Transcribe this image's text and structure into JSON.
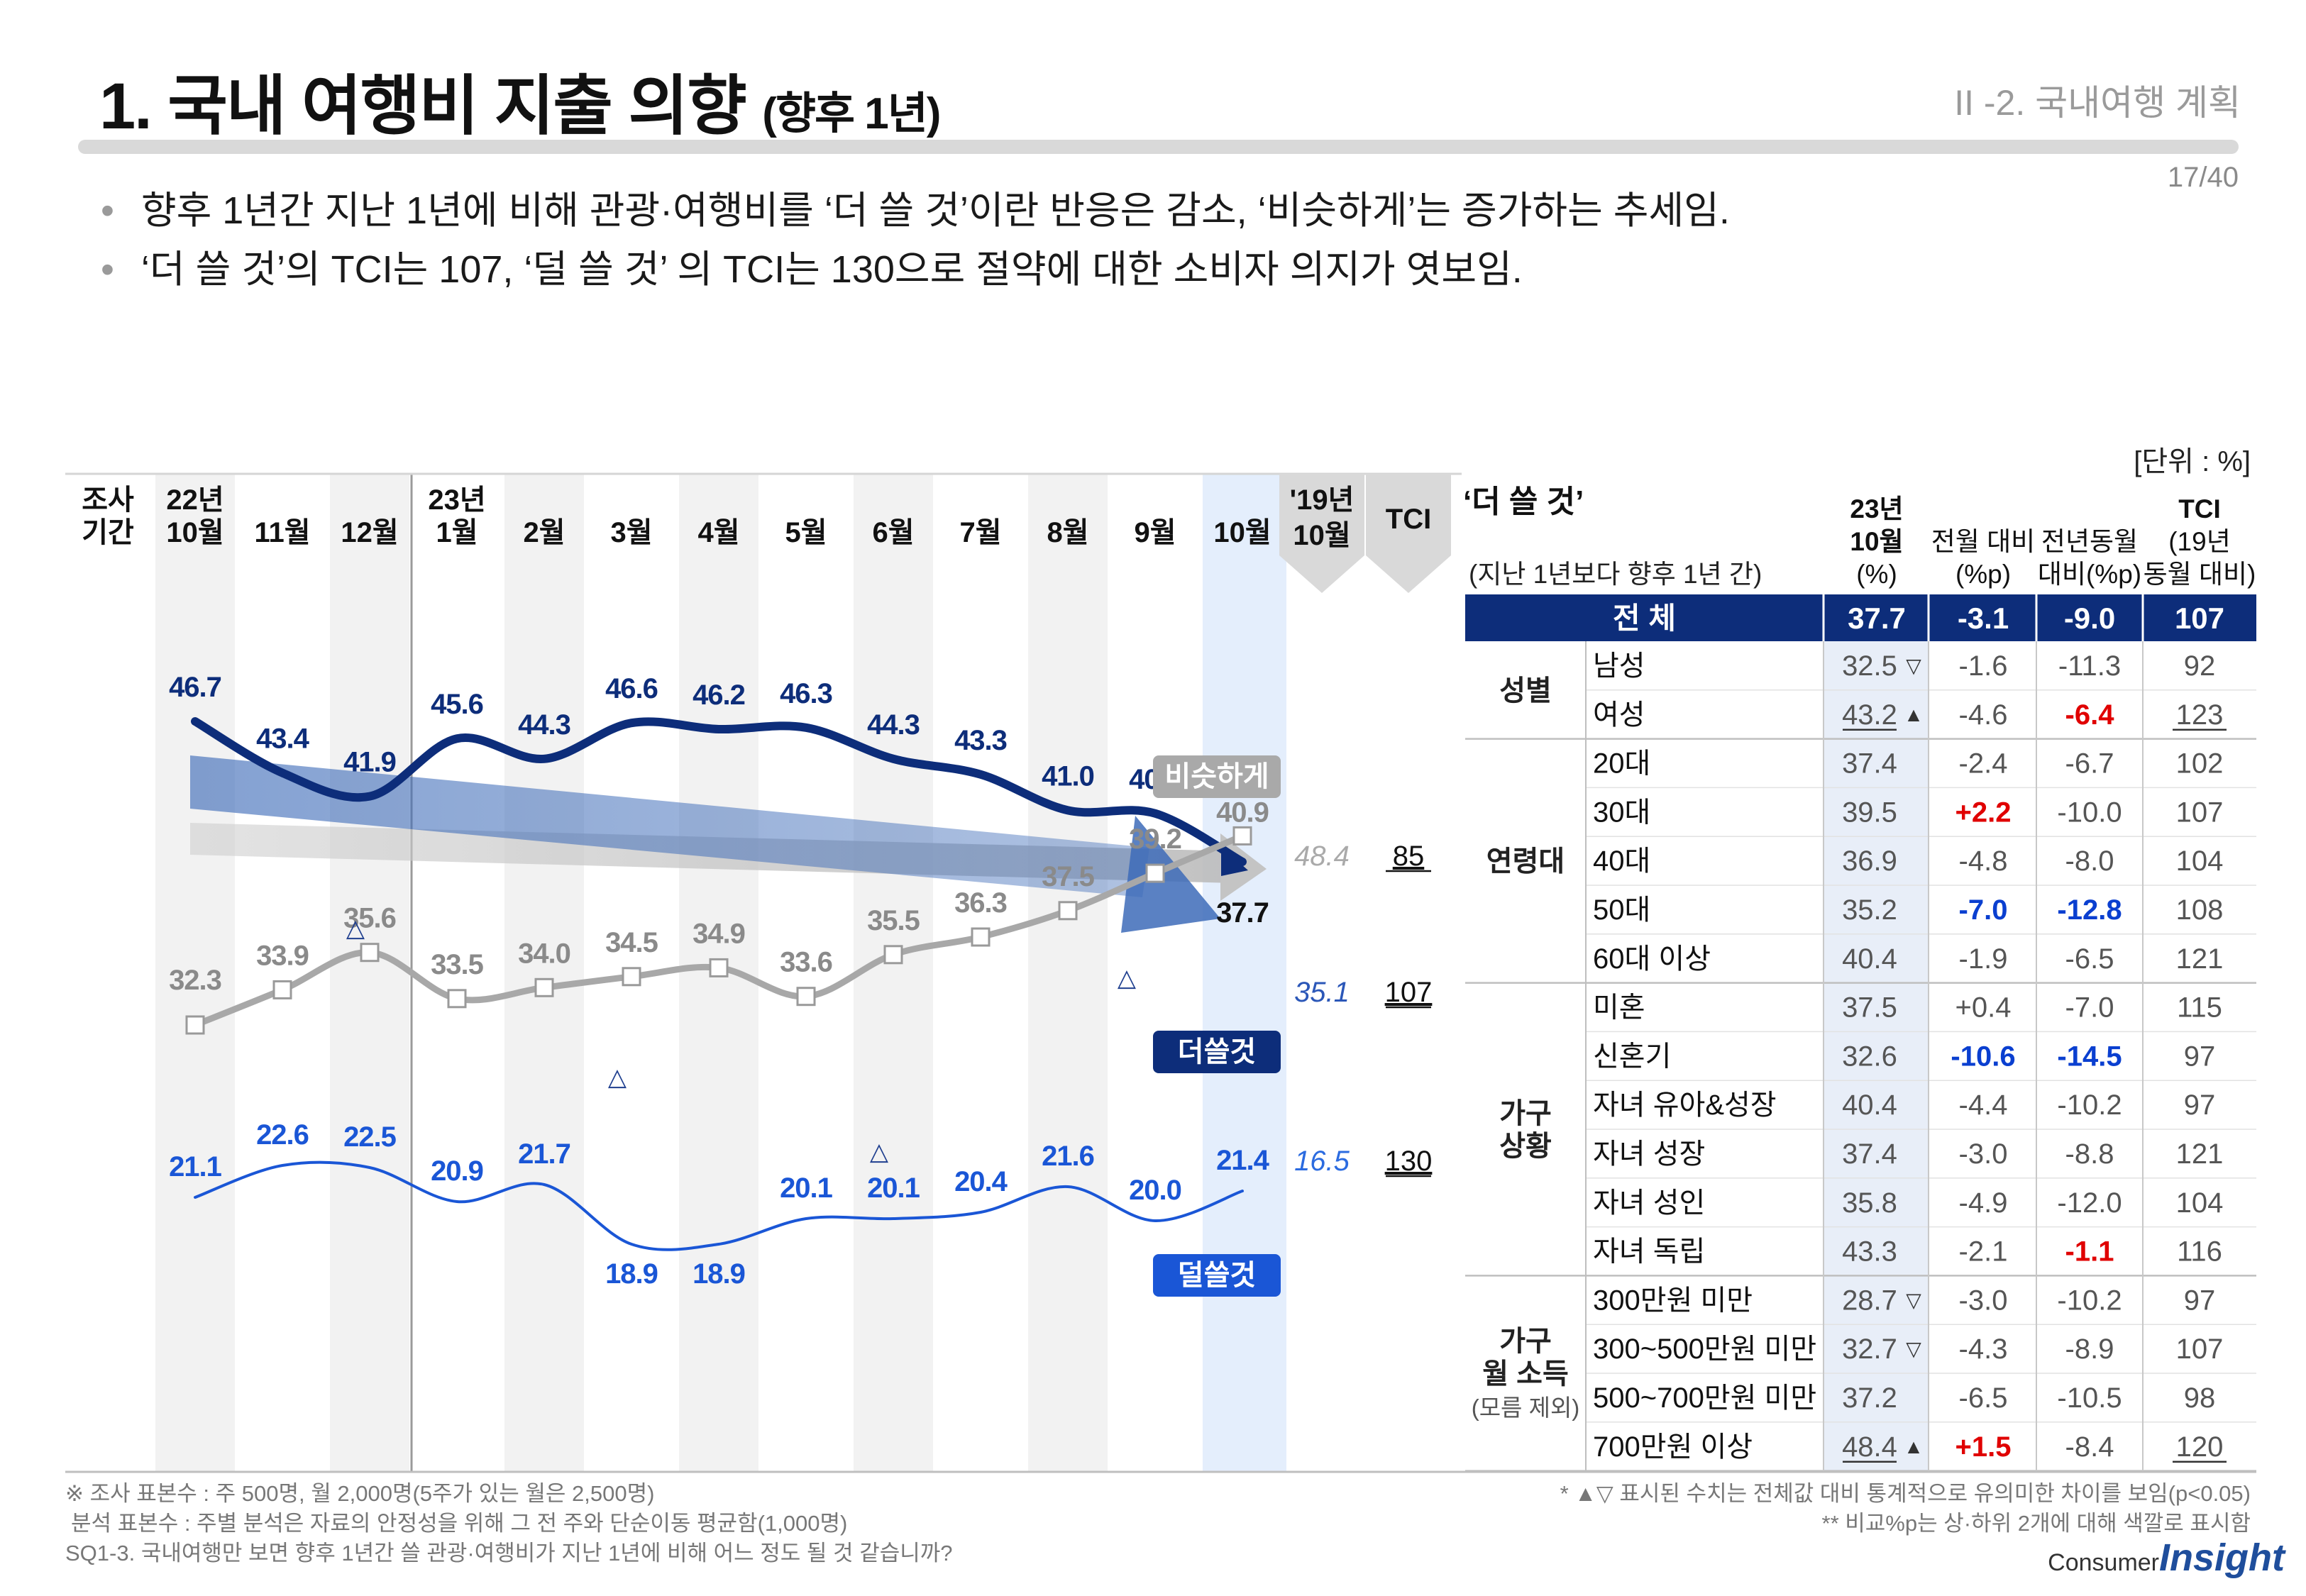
{
  "header": {
    "title": "1. 국내 여행비 지출 의향",
    "title_sub": "(향후 1년)",
    "section": "II -2. 국내여행 계획",
    "page": "17/40"
  },
  "bullets": [
    "향후 1년간 지난 1년에 비해 관광·여행비를 ‘더 쓸 것’이란 반응은 감소, ‘비슷하게’는 증가하는 추세임.",
    "‘더 쓸 것’의 TCI는 107, ‘덜 쓸 것’ 의 TCI는 130으로 절약에 대한 소비자 의지가 엿보임."
  ],
  "unit_label": "[단위 : %]",
  "chart_data": [
    {
      "type": "line",
      "period_label": [
        "조사",
        "기간"
      ],
      "categories": [
        [
          "22년",
          "10월"
        ],
        [
          "11월"
        ],
        [
          "12월"
        ],
        [
          "23년",
          "1월"
        ],
        [
          "2월"
        ],
        [
          "3월"
        ],
        [
          "4월"
        ],
        [
          "5월"
        ],
        [
          "6월"
        ],
        [
          "7월"
        ],
        [
          "8월"
        ],
        [
          "9월"
        ],
        [
          "10월"
        ]
      ],
      "ref_header": [
        "'19년",
        "10월"
      ],
      "tci_header": "TCI",
      "series": [
        {
          "name": "더쓸것",
          "color": "#0d2d7a",
          "values": [
            46.7,
            43.4,
            41.9,
            45.6,
            44.3,
            46.6,
            46.2,
            46.3,
            44.3,
            43.3,
            41.0,
            40.8,
            37.7
          ],
          "ref_2019": "35.1",
          "tci": "107"
        },
        {
          "name": "비슷하게",
          "color": "#a8a8a8",
          "values": [
            32.3,
            33.9,
            35.6,
            33.5,
            34.0,
            34.5,
            34.9,
            33.6,
            35.5,
            36.3,
            37.5,
            39.2,
            40.9
          ],
          "ref_2019": "48.4",
          "tci": "85"
        },
        {
          "name": "덜쓸것",
          "color": "#1a56d6",
          "values": [
            21.1,
            22.6,
            22.5,
            20.9,
            21.7,
            18.9,
            18.9,
            20.1,
            20.1,
            20.4,
            21.6,
            20.0,
            21.4
          ],
          "ref_2019": "16.5",
          "tci": "130"
        }
      ],
      "markers": [
        {
          "series": "비슷하게",
          "index": 2,
          "symbol": "△"
        },
        {
          "series": "비슷하게",
          "index": 11,
          "symbol": "△"
        },
        {
          "series": "덜쓸것",
          "index": 5,
          "symbol": "△"
        },
        {
          "series": "덜쓸것",
          "index": 8,
          "symbol": "△"
        }
      ]
    },
    {
      "type": "table",
      "title": "‘더 쓸 것’",
      "subtitle": "(지난 1년보다 향후 1년 간)",
      "columns": [
        [
          "23년",
          "10월",
          "(%)"
        ],
        [
          "전월 대비",
          "(%p)"
        ],
        [
          "전년동월",
          "대비(%p)"
        ],
        [
          "TCI",
          "(19년",
          "동월 대비)"
        ]
      ],
      "total": {
        "label": "전 체",
        "values": [
          "37.7",
          "-3.1",
          "-9.0",
          "107"
        ]
      },
      "groups": [
        {
          "label": [
            "성별"
          ],
          "rows": [
            {
              "label": "남성",
              "values": [
                "32.5",
                "-1.6",
                "-11.3",
                "92"
              ],
              "sig": "▽"
            },
            {
              "label": "여성",
              "values": [
                "43.2",
                "-4.6",
                "-6.4",
                "123"
              ],
              "sig": "▲",
              "hl": [
                null,
                null,
                "red",
                null
              ],
              "ul": [
                true,
                false,
                false,
                true
              ]
            }
          ]
        },
        {
          "label": [
            "연령대"
          ],
          "rows": [
            {
              "label": "20대",
              "values": [
                "37.4",
                "-2.4",
                "-6.7",
                "102"
              ]
            },
            {
              "label": "30대",
              "values": [
                "39.5",
                "+2.2",
                "-10.0",
                "107"
              ],
              "hl": [
                null,
                "red",
                null,
                null
              ]
            },
            {
              "label": "40대",
              "values": [
                "36.9",
                "-4.8",
                "-8.0",
                "104"
              ]
            },
            {
              "label": "50대",
              "values": [
                "35.2",
                "-7.0",
                "-12.8",
                "108"
              ],
              "hl": [
                null,
                "blue",
                "blue",
                null
              ]
            },
            {
              "label": "60대 이상",
              "values": [
                "40.4",
                "-1.9",
                "-6.5",
                "121"
              ]
            }
          ]
        },
        {
          "label": [
            "가구",
            "상황"
          ],
          "rows": [
            {
              "label": "미혼",
              "values": [
                "37.5",
                "+0.4",
                "-7.0",
                "115"
              ]
            },
            {
              "label": "신혼기",
              "values": [
                "32.6",
                "-10.6",
                "-14.5",
                "97"
              ],
              "hl": [
                null,
                "blue",
                "blue",
                null
              ]
            },
            {
              "label": "자녀 유아&성장",
              "values": [
                "40.4",
                "-4.4",
                "-10.2",
                "97"
              ]
            },
            {
              "label": "자녀 성장",
              "values": [
                "37.4",
                "-3.0",
                "-8.8",
                "121"
              ]
            },
            {
              "label": "자녀 성인",
              "values": [
                "35.8",
                "-4.9",
                "-12.0",
                "104"
              ]
            },
            {
              "label": "자녀 독립",
              "values": [
                "43.3",
                "-2.1",
                "-1.1",
                "116"
              ],
              "hl": [
                null,
                null,
                "red",
                null
              ]
            }
          ]
        },
        {
          "label": [
            "가구",
            "월 소득"
          ],
          "note": "(모름 제외)",
          "rows": [
            {
              "label": "300만원 미만",
              "values": [
                "28.7",
                "-3.0",
                "-10.2",
                "97"
              ],
              "sig": "▽"
            },
            {
              "label": "300~500만원 미만",
              "values": [
                "32.7",
                "-4.3",
                "-8.9",
                "107"
              ],
              "sig": "▽"
            },
            {
              "label": "500~700만원 미만",
              "values": [
                "37.2",
                "-6.5",
                "-10.5",
                "98"
              ]
            },
            {
              "label": "700만원 이상",
              "values": [
                "48.4",
                "+1.5",
                "-8.4",
                "120"
              ],
              "sig": "▲",
              "hl": [
                null,
                "red",
                null,
                null
              ],
              "ul": [
                true,
                false,
                false,
                true
              ]
            }
          ]
        }
      ]
    }
  ],
  "footnotes": {
    "left": [
      "※ 조사 표본수 : 주 500명, 월 2,000명(5주가 있는 월은 2,500명)",
      "분석 표본수 : 주별 분석은 자료의 안정성을 위해 그 전 주와 단순이동 평균함(1,000명)",
      "SQ1-3. 국내여행만 보면 향후 1년간 쓸 관광·여행비가 지난 1년에 비해 어느 정도 될 것 같습니까?"
    ],
    "right": [
      "* ▲▽ 표시된 수치는 전체값 대비 통계적으로 유의미한 차이를 보임(p<0.05)",
      "** 비교%p는 상·하위 2개에 대해 색깔로 표시함"
    ]
  },
  "brand": {
    "small": "Consumer",
    "big": "Insight"
  }
}
